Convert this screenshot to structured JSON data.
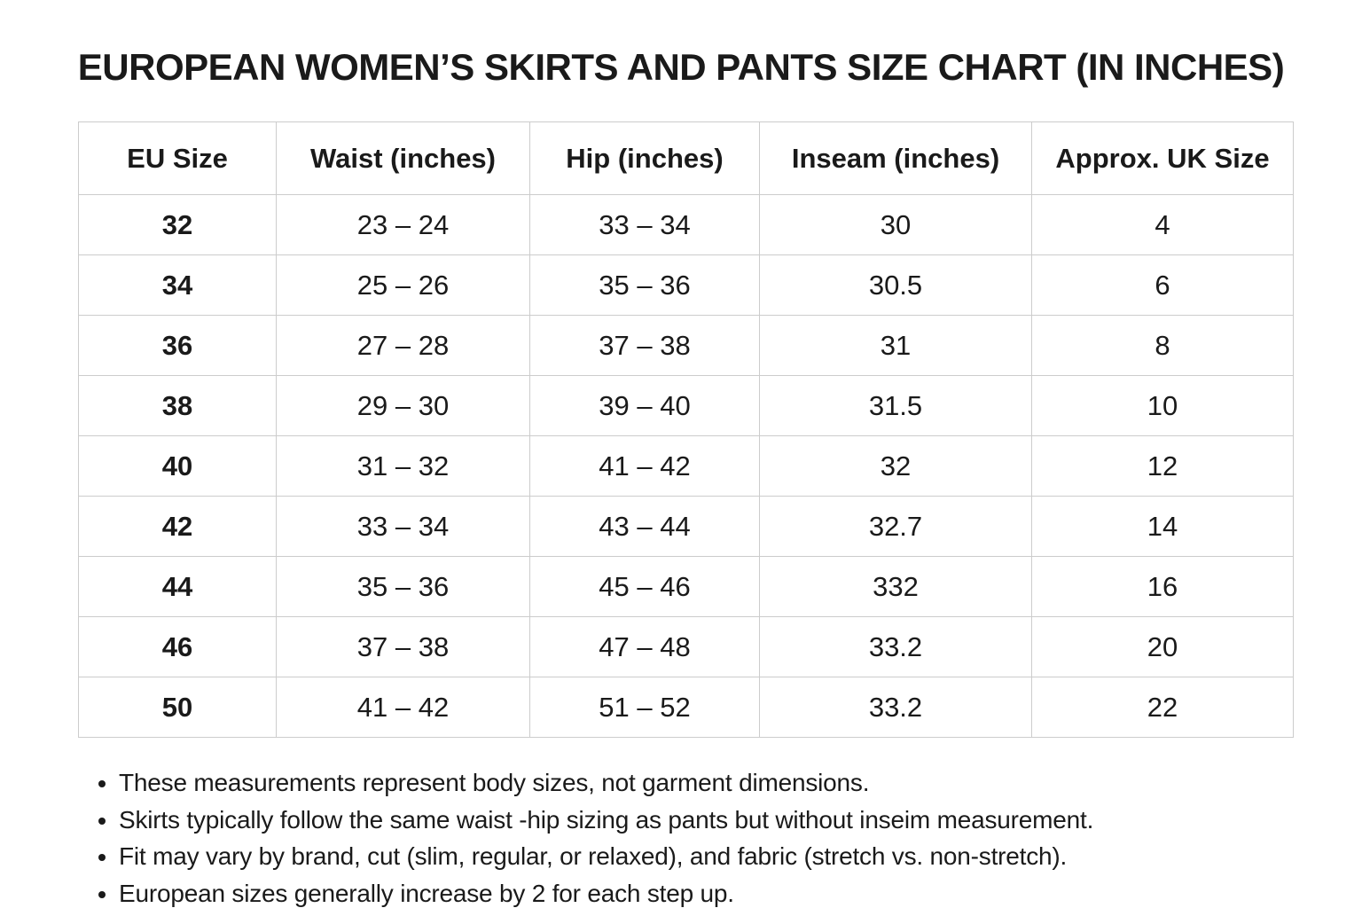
{
  "title": "EUROPEAN WOMEN’S SKIRTS AND PANTS SIZE CHART (IN INCHES)",
  "table": {
    "headers": [
      "EU Size",
      "Waist (inches)",
      "Hip (inches)",
      "Inseam (inches)",
      "Approx. UK Size"
    ],
    "rows": [
      [
        "32",
        "23 – 24",
        "33 – 34",
        "30",
        "4"
      ],
      [
        "34",
        "25 – 26",
        "35 – 36",
        "30.5",
        "6"
      ],
      [
        "36",
        "27 – 28",
        "37 – 38",
        "31",
        "8"
      ],
      [
        "38",
        "29 – 30",
        "39 – 40",
        "31.5",
        "10"
      ],
      [
        "40",
        "31 – 32",
        "41 – 42",
        "32",
        "12"
      ],
      [
        "42",
        "33 – 34",
        "43 – 44",
        "32.7",
        "14"
      ],
      [
        "44",
        "35 – 36",
        "45 – 46",
        "332",
        "16"
      ],
      [
        "46",
        "37 – 38",
        "47 – 48",
        "33.2",
        "20"
      ],
      [
        "50",
        "41 – 42",
        "51 – 52",
        "33.2",
        "22"
      ]
    ]
  },
  "notes": [
    "These measurements represent body sizes, not garment dimensions.",
    "Skirts typically follow the same waist -hip sizing as pants but without inseim measurement.",
    "Fit may vary by brand, cut (slim, regular, or relaxed), and fabric (stretch vs. non-stretch).",
    "European sizes generally increase by 2 for each step up."
  ],
  "colors": {
    "text": "#1a1a1a",
    "border": "#cccccc",
    "background": "#ffffff"
  }
}
